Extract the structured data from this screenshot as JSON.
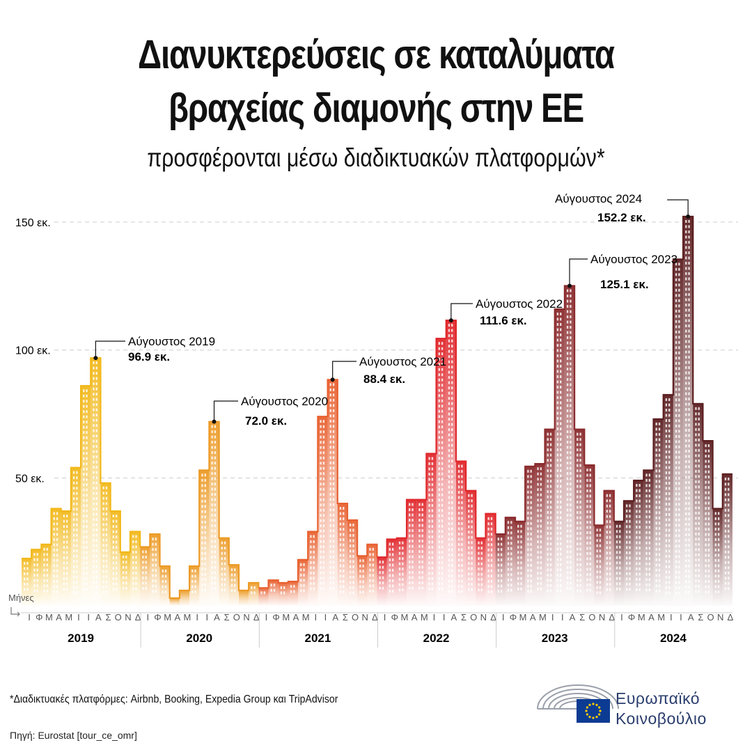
{
  "title_line1": "Διανυκτερεύσεις σε καταλύματα",
  "title_line2": "βραχείας διαμονής στην ΕΕ",
  "subtitle": "προσφέρονται μέσω διαδικτυακών πλατφορμών*",
  "footnote": "*Διαδικτυακές πλατφόρμες: Airbnb, Booking, Expedia Group και TripAdvisor",
  "source": "Πηγή: Eurostat [tour_ce_omr]",
  "logo": {
    "line1": "Ευρωπαϊκό",
    "line2": "Κοινοβούλιο"
  },
  "colors": {
    "2019": "#f2b81a",
    "2020": "#ec9a25",
    "2021": "#e8602f",
    "2022": "#e0272b",
    "2023": "#8a2a2c",
    "2024": "#5c1e20",
    "grid": "#cccccc",
    "logo_blue": "#2a3d6d",
    "eu_flag": "#0c3b93",
    "eu_star": "#ffcc00"
  },
  "chart_data": {
    "type": "bar",
    "ylabel_ticks": [
      "50 εκ.",
      "100 εκ.",
      "150 εκ."
    ],
    "ytick_values": [
      50,
      100,
      150
    ],
    "ylim": [
      0,
      160
    ],
    "xlabel": "Μήνες",
    "month_labels": [
      "Ι",
      "Φ",
      "Μ",
      "Α",
      "Μ",
      "Ι",
      "Ι",
      "Α",
      "Σ",
      "Ο",
      "Ν",
      "Δ"
    ],
    "grid": true,
    "series": [
      {
        "name": "2019",
        "values": [
          18.5,
          22,
          24,
          38,
          37,
          54,
          86,
          96.9,
          48,
          37,
          21,
          29
        ]
      },
      {
        "name": "2020",
        "values": [
          23,
          28,
          15.5,
          3,
          6,
          15.5,
          53,
          72.0,
          26.5,
          16,
          6,
          9
        ]
      },
      {
        "name": "2021",
        "values": [
          7,
          10,
          9,
          9.5,
          18,
          29,
          74,
          88.4,
          40,
          33.5,
          19.5,
          24
        ]
      },
      {
        "name": "2022",
        "values": [
          19,
          26,
          26.5,
          41.5,
          41.5,
          59.5,
          104.5,
          111.6,
          56.5,
          45,
          26.5,
          36
        ]
      },
      {
        "name": "2023",
        "values": [
          28,
          34.5,
          33,
          54.5,
          55.5,
          69,
          116,
          125.1,
          69,
          55,
          31.5,
          45
        ]
      },
      {
        "name": "2024",
        "values": [
          33,
          41,
          49,
          53,
          73,
          82.5,
          135.5,
          152.2,
          79,
          64.5,
          38,
          51.5
        ]
      }
    ],
    "annotations": [
      {
        "series": "2019",
        "label": "Αύγουστος 2019",
        "value_label": "96.9 εκ."
      },
      {
        "series": "2020",
        "label": "Αύγουστος 2020",
        "value_label": "72.0 εκ."
      },
      {
        "series": "2021",
        "label": "Αύγουστος 2021",
        "value_label": "88.4 εκ."
      },
      {
        "series": "2022",
        "label": "Αύγουστος 2022",
        "value_label": "111.6 εκ."
      },
      {
        "series": "2023",
        "label": "Αύγουστος 2023",
        "value_label": "125.1 εκ."
      },
      {
        "series": "2024",
        "label": "Αύγουστος 2024",
        "value_label": "152.2 εκ."
      }
    ]
  }
}
